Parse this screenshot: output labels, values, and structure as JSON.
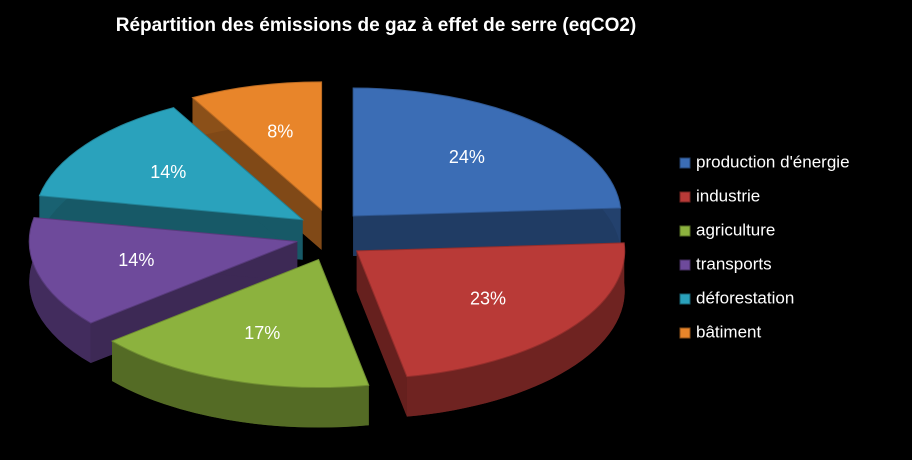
{
  "chart_data": {
    "type": "pie",
    "title": "Répartition des émissions de gaz à effet de serre (eqCO2)",
    "categories": [
      "production d'énergie",
      "industrie",
      "agriculture",
      "transports",
      "déforestation",
      "bâtiment"
    ],
    "values": [
      24,
      23,
      17,
      14,
      14,
      8
    ],
    "value_labels": [
      "24%",
      "23%",
      "17%",
      "14%",
      "14%",
      "8%"
    ],
    "colors": [
      "#3b6db5",
      "#b93a37",
      "#8cb23e",
      "#6e4a9b",
      "#2aa2bc",
      "#e8852a"
    ],
    "legend": "right"
  }
}
